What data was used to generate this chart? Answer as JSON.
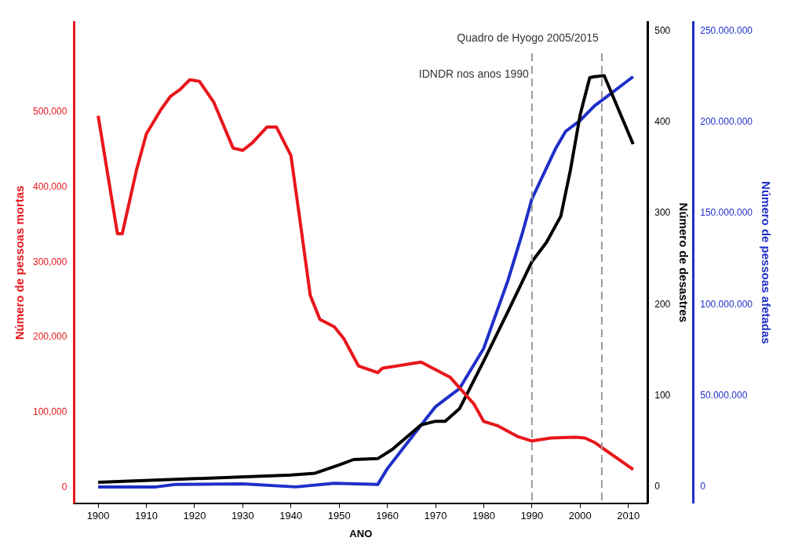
{
  "chart_data": {
    "type": "line",
    "xlabel": "ANO",
    "ylabel": "Número de pessoas mortas",
    "y2label": "Número de desastres",
    "y3label": "Número de pessoas afetadas",
    "xlim": [
      1895,
      2014
    ],
    "xticks": [
      1900,
      1910,
      1920,
      1930,
      1940,
      1950,
      1960,
      1970,
      1980,
      1990,
      2000,
      2010
    ],
    "ylim": [
      -21000,
      620000
    ],
    "yticks": [
      {
        "value": 0,
        "label": "0"
      },
      {
        "value": 100000,
        "label": "100,000"
      },
      {
        "value": 200000,
        "label": "200,000"
      },
      {
        "value": 300000,
        "label": "300,000"
      },
      {
        "value": 400000,
        "label": "400,000"
      },
      {
        "value": 500000,
        "label": "500,000"
      }
    ],
    "y2lim": [
      -18,
      510
    ],
    "y2ticks": [
      0,
      100,
      200,
      300,
      400,
      500
    ],
    "y3lim": [
      -9000000,
      255000000
    ],
    "y3ticks": [
      {
        "value": 0,
        "label": "0"
      },
      {
        "value": 50000000,
        "label": "50.000.000"
      },
      {
        "value": 100000000,
        "label": "100.000.000"
      },
      {
        "value": 150000000,
        "label": "150.000.000"
      },
      {
        "value": 200000000,
        "label": "200.000.000"
      },
      {
        "value": 250000000,
        "label": "250.000.000"
      }
    ],
    "grid": false,
    "legend": false,
    "marker": "none",
    "line_style": "solid",
    "ref_lines": [
      {
        "axis": "x",
        "value": 1990,
        "label": "IDNDR nos anos 1990",
        "color": "#999999",
        "line_style": "dashed"
      },
      {
        "axis": "x",
        "value": 2004.5,
        "label": "Quadro de Hyogo 2005/2015",
        "color": "#999999",
        "line_style": "dashed"
      }
    ],
    "series": [
      {
        "color": "#e8161b",
        "x": [
          1900,
          1904,
          1905,
          1908,
          1910,
          1913,
          1915,
          1917,
          1919,
          1921,
          1924,
          1928,
          1930,
          1932,
          1935,
          1937,
          1940,
          1942,
          1944,
          1946,
          1949,
          1951,
          1954,
          1958,
          1959,
          1967,
          1973,
          1978,
          1980,
          1983,
          1987,
          1990,
          1994,
          1999,
          2001,
          2003,
          2011
        ],
        "values": [
          495000,
          338000,
          338000,
          424000,
          471000,
          503000,
          521000,
          530000,
          543000,
          541000,
          513000,
          452000,
          449000,
          459000,
          480000,
          480000,
          442000,
          350000,
          256000,
          224000,
          214000,
          198000,
          162000,
          153000,
          159000,
          167000,
          147000,
          111000,
          88000,
          82000,
          68000,
          62000,
          66000,
          67000,
          66000,
          60000,
          24000
        ]
      },
      {
        "color": "#000000",
        "axis": "y2",
        "x": [
          1900,
          1940,
          1945,
          1950,
          1953,
          1958,
          1961,
          1967,
          1970,
          1972,
          1975,
          1980,
          1985,
          1990,
          1993,
          1996,
          1998,
          2000,
          2002,
          2003,
          2005,
          2011
        ],
        "values": [
          5,
          13,
          15,
          24,
          30,
          31,
          41,
          68,
          72,
          72,
          86,
          138,
          192,
          247,
          268,
          297,
          348,
          408,
          449,
          450,
          451,
          376
        ]
      },
      {
        "color": "#1f2fc8",
        "axis": "y3",
        "x": [
          1900,
          1912,
          1916,
          1930,
          1941,
          1949,
          1958,
          1960,
          1965,
          1970,
          1975,
          1980,
          1985,
          1988,
          1990,
          1995,
          1997,
          2000,
          2003,
          2011
        ],
        "values": [
          0,
          0,
          1300000,
          1700000,
          0,
          2000000,
          1300000,
          10000000,
          27000000,
          44000000,
          54000000,
          76000000,
          113000000,
          139000000,
          158000000,
          186000000,
          195000000,
          201000000,
          209000000,
          225000000
        ]
      }
    ]
  }
}
